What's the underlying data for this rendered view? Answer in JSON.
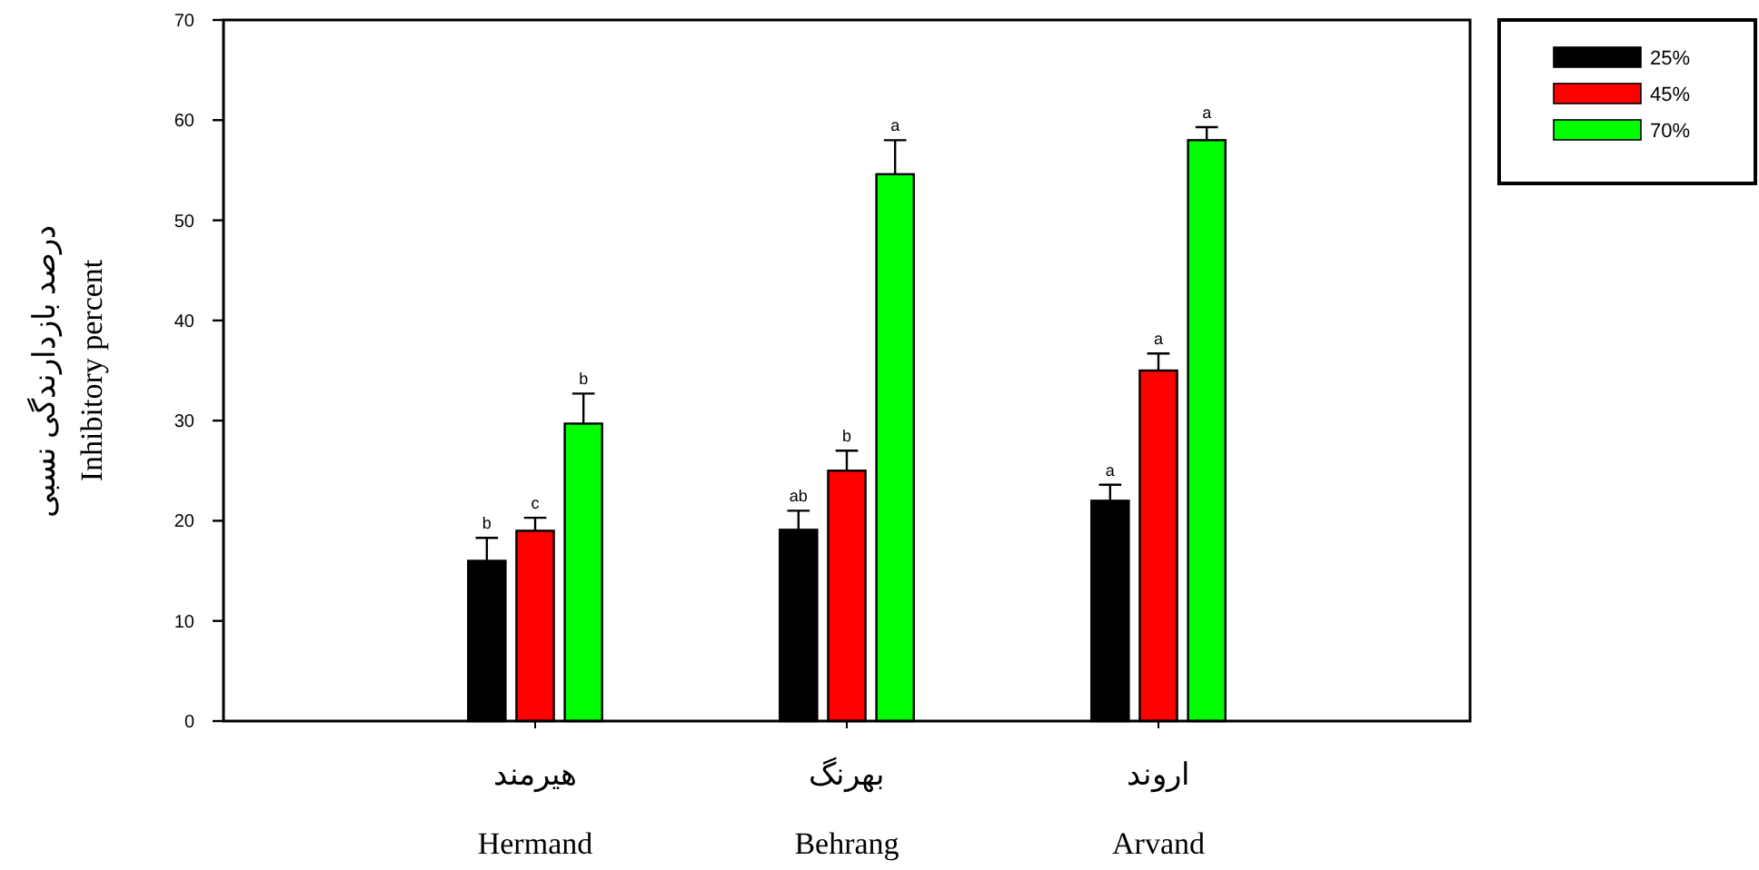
{
  "chart_data": {
    "type": "bar",
    "ylabel": "درصد بازدارندگی نسبی\nInhibitory percent",
    "categories": [
      "هیرمند\nHermand",
      "بهرنگ\nBehrang",
      "اروند\nArvand"
    ],
    "series": [
      {
        "name": "25%",
        "color": "#000000",
        "values": [
          16.0,
          19.1,
          22.0
        ],
        "errors": [
          2.3,
          1.9,
          1.6
        ],
        "value_labels": [
          "b",
          "ab",
          "a"
        ]
      },
      {
        "name": "45%",
        "color": "#ff0000",
        "values": [
          19.0,
          25.0,
          35.0
        ],
        "errors": [
          1.3,
          2.0,
          1.7
        ],
        "value_labels": [
          "c",
          "b",
          "a"
        ]
      },
      {
        "name": "70%",
        "color": "#00ff00",
        "values": [
          29.7,
          54.6,
          58.0
        ],
        "errors": [
          3.0,
          3.4,
          1.3
        ],
        "value_labels": [
          "b",
          "a",
          "a"
        ]
      }
    ],
    "ylim": [
      0,
      70
    ],
    "yticks": [
      0,
      10,
      20,
      30,
      40,
      50,
      60,
      70
    ],
    "grid": false,
    "legend": "top right"
  }
}
